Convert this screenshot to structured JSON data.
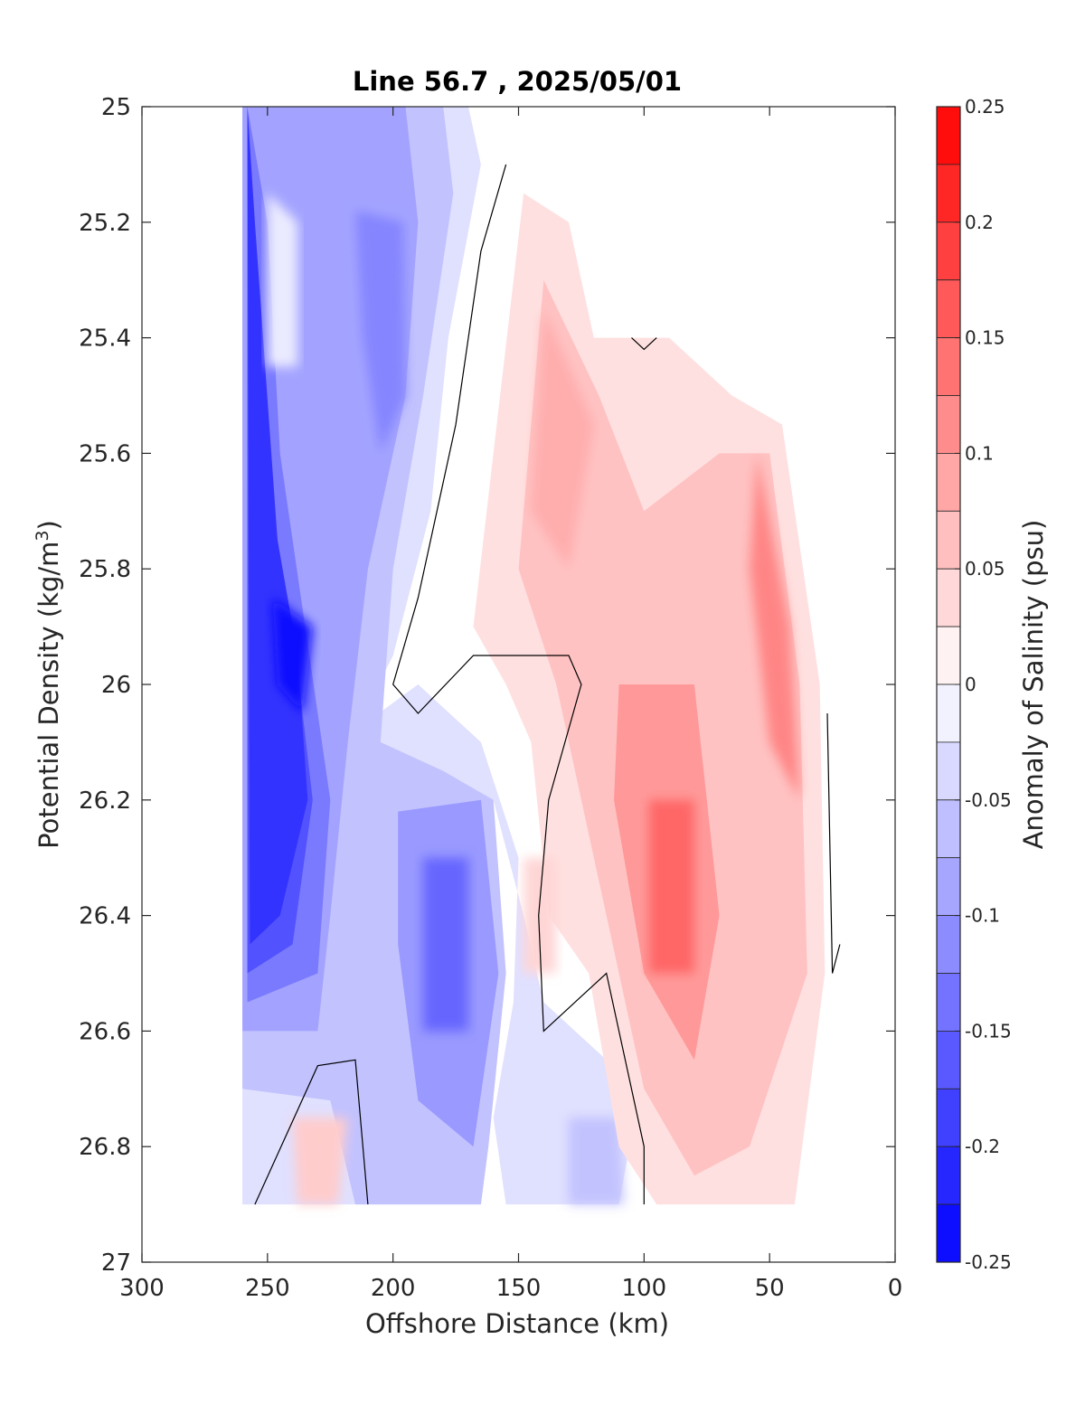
{
  "chart_data": {
    "type": "contourf",
    "title": "Line 56.7 , 2025/05/01",
    "xlabel": "Offshore Distance (km)",
    "ylabel": "Potential Density (kg/m",
    "ylabel_sup": "3",
    "ylabel_close": ")",
    "xlim": [
      300,
      0
    ],
    "x_reversed": true,
    "ylim": [
      25,
      27
    ],
    "y_reversed": true,
    "x_ticks": [
      "300",
      "250",
      "200",
      "150",
      "100",
      "50",
      "0"
    ],
    "y_ticks": [
      "25",
      "25.2",
      "25.4",
      "25.6",
      "25.8",
      "26",
      "26.2",
      "26.4",
      "26.6",
      "26.8",
      "27"
    ],
    "colorbar": {
      "label": "Anomaly of Salinity (psu)",
      "range": [
        -0.25,
        0.25
      ],
      "step": 0.025,
      "tick_labels": [
        "0.25",
        "0.2",
        "0.15",
        "0.1",
        "0.05",
        "0",
        "-0.05",
        "-0.1",
        "-0.15",
        "-0.2",
        "-0.25"
      ],
      "colormap": "blue-white-red"
    },
    "features": [
      {
        "name": "coastal-fresh-core",
        "x": 240,
        "y": 26.05,
        "anomaly": -0.24
      },
      {
        "name": "deep-fresh-core",
        "x": 178,
        "y": 26.45,
        "anomaly": -0.15
      },
      {
        "name": "upper-fresh-band",
        "x": 200,
        "y": 25.4,
        "anomaly": -0.12
      },
      {
        "name": "salty-core",
        "x": 88,
        "y": 26.35,
        "anomaly": 0.15
      },
      {
        "name": "nearshore-salty-band",
        "x": 45,
        "y": 25.9,
        "anomaly": 0.12
      },
      {
        "name": "upper-salty-band",
        "x": 135,
        "y": 25.55,
        "anomaly": 0.08
      },
      {
        "name": "deep-salty-patch",
        "x": 230,
        "y": 26.87,
        "anomaly": 0.05
      }
    ],
    "zero_contour": "black line",
    "grid": false
  },
  "colors": {
    "negative_max": "#0000ff",
    "zero": "#ffffff",
    "positive_max": "#ff0000",
    "axis": "#262626",
    "contour": "#000000"
  }
}
